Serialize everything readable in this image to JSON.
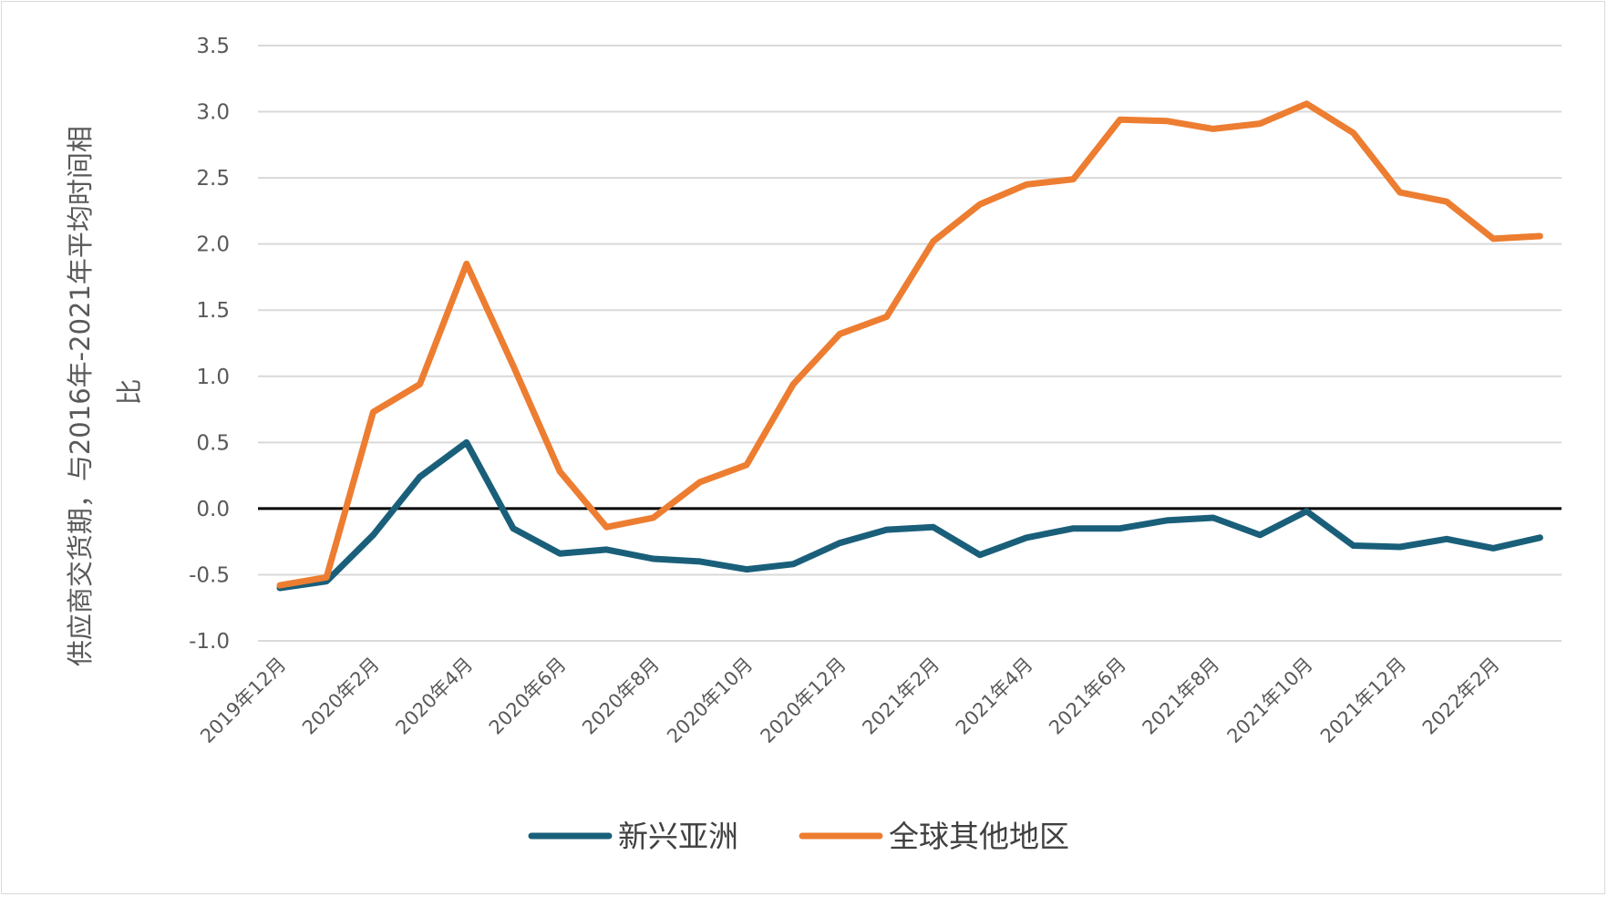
{
  "chart_data": {
    "type": "line",
    "title": "",
    "ylabel_lines": [
      "供应商交货期，与2016年-2021年平均时间相",
      "比"
    ],
    "ylim": [
      -1.0,
      3.5
    ],
    "yticks": [
      3.5,
      3.0,
      2.5,
      2.0,
      1.5,
      1.0,
      0.5,
      0.0,
      -0.5,
      -1.0
    ],
    "ytick_labels": [
      "3.5",
      "3.0",
      "2.5",
      "2.0",
      "1.5",
      "1.0",
      "0.5",
      "0.0",
      "-0.5",
      "-1.0"
    ],
    "grid": true,
    "zero_line": true,
    "legend_position": "bottom",
    "x": [
      "2019年12月",
      "2020年1月",
      "2020年2月",
      "2020年3月",
      "2020年4月",
      "2020年5月",
      "2020年6月",
      "2020年7月",
      "2020年8月",
      "2020年9月",
      "2020年10月",
      "2020年11月",
      "2020年12月",
      "2021年1月",
      "2021年2月",
      "2021年3月",
      "2021年4月",
      "2021年5月",
      "2021年6月",
      "2021年7月",
      "2021年8月",
      "2021年9月",
      "2021年10月",
      "2021年11月",
      "2021年12月",
      "2022年1月",
      "2022年2月",
      "2022年3月"
    ],
    "xtick_labels": [
      "2019年12月",
      "2020年2月",
      "2020年4月",
      "2020年6月",
      "2020年8月",
      "2020年10月",
      "2020年12月",
      "2021年2月",
      "2021年4月",
      "2021年6月",
      "2021年8月",
      "2021年10月",
      "2021年12月",
      "2022年2月"
    ],
    "series": [
      {
        "name": "新兴亚洲",
        "color": "#1a5f7a",
        "values": [
          -0.6,
          -0.55,
          -0.2,
          0.24,
          0.5,
          -0.15,
          -0.34,
          -0.31,
          -0.38,
          -0.4,
          -0.46,
          -0.42,
          -0.26,
          -0.16,
          -0.14,
          -0.35,
          -0.22,
          -0.15,
          -0.15,
          -0.09,
          -0.07,
          -0.2,
          -0.02,
          -0.28,
          -0.29,
          -0.23,
          -0.3,
          -0.22
        ]
      },
      {
        "name": "全球其他地区",
        "color": "#ed7d31",
        "values": [
          -0.58,
          -0.52,
          0.73,
          0.94,
          1.85,
          1.08,
          0.28,
          -0.14,
          -0.07,
          0.2,
          0.33,
          0.94,
          1.32,
          1.45,
          2.02,
          2.3,
          2.45,
          2.49,
          2.94,
          2.93,
          2.87,
          2.91,
          3.06,
          2.84,
          2.39,
          2.32,
          2.04,
          2.06
        ]
      }
    ]
  }
}
